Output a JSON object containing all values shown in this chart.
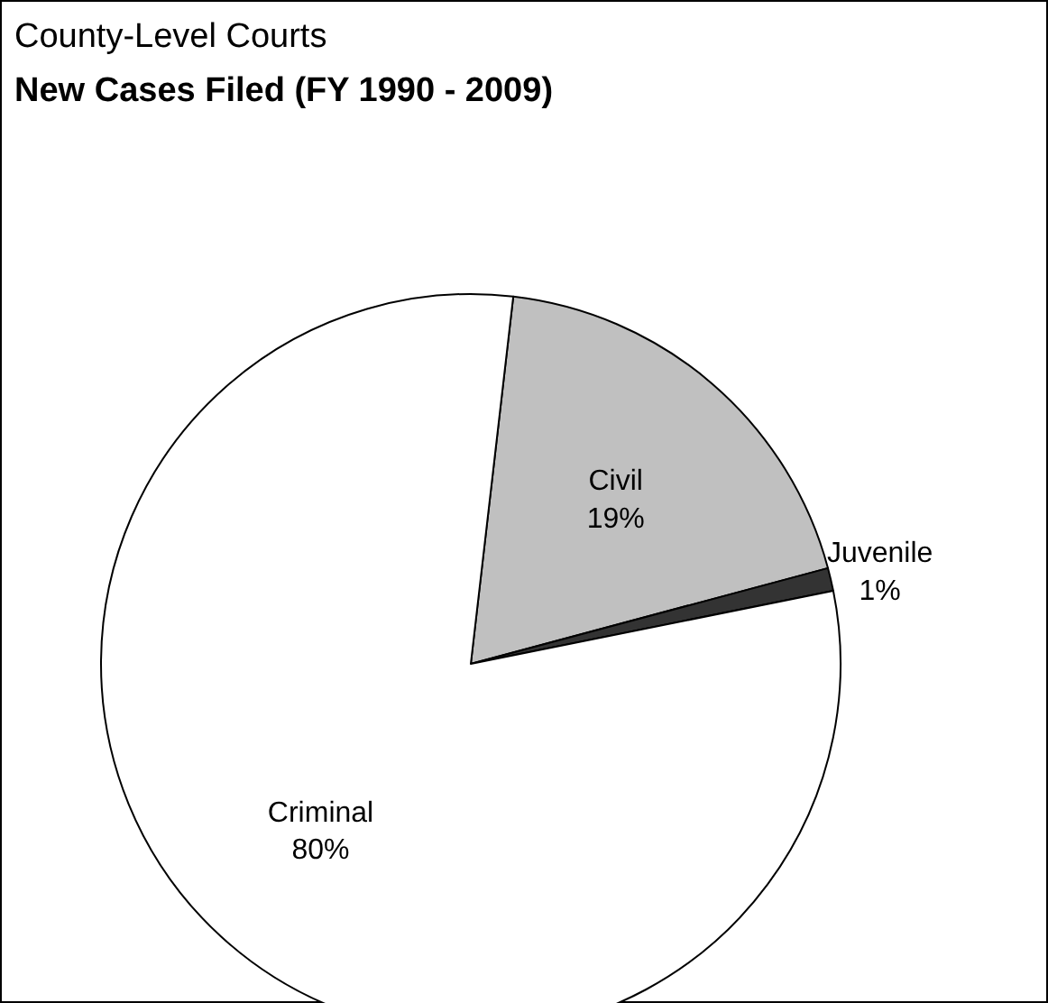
{
  "chart_data": {
    "type": "pie",
    "title": "County-Level Courts",
    "subtitle": "New Cases Filed (FY 1990 - 2009)",
    "categories": [
      "Civil",
      "Juvenile",
      "Criminal"
    ],
    "values": [
      19,
      1,
      80
    ],
    "colors": [
      "#c0c0c0",
      "#333333",
      "#ffffff"
    ],
    "value_labels": [
      "19%",
      "1%",
      "80%"
    ]
  }
}
